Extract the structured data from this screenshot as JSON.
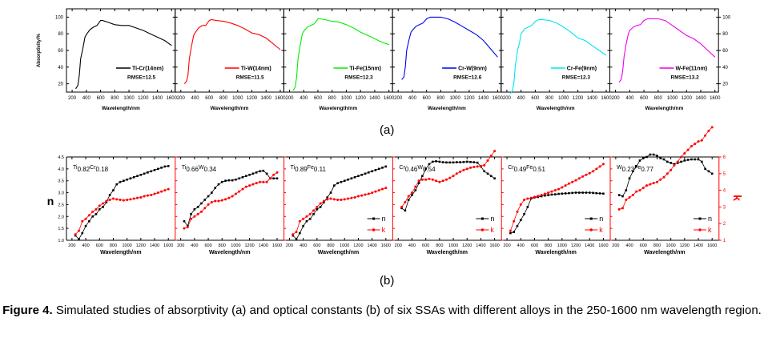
{
  "figure": {
    "label_a": "(a)",
    "label_b": "(b)",
    "caption_bold": "Figure 4.",
    "caption_text": " Simulated studies of absorptivity (a) and optical constants (b) of six SSAs with different alloys in the 250-1600 nm wavelength region."
  },
  "chart_data": [
    {
      "type": "line",
      "panel": "a",
      "ylabel": "Absorptivity/%",
      "xlabel": "Wavelength/nm",
      "xlim": [
        120,
        1650
      ],
      "ylim": [
        10,
        110
      ],
      "xticks": [
        200,
        400,
        600,
        800,
        1000,
        1200,
        1400,
        1600
      ],
      "yticks": [
        20,
        40,
        60,
        80,
        100
      ],
      "right_yticks": [
        20,
        40,
        60,
        80,
        100
      ],
      "legend_position": "bottom-right",
      "series": [
        {
          "name": "Ti-Cr(14nm)",
          "rmse": "RMSE=12.5",
          "color": "#000000",
          "x": [
            250,
            280,
            300,
            320,
            350,
            380,
            400,
            450,
            500,
            550,
            600,
            630,
            700,
            800,
            900,
            1000,
            1100,
            1200,
            1300,
            1400,
            1500,
            1600
          ],
          "y": [
            14,
            18,
            30,
            50,
            62,
            76,
            79,
            85,
            88,
            90,
            96,
            96,
            94,
            91,
            90,
            90,
            87,
            84,
            80,
            76,
            72,
            66
          ]
        },
        {
          "name": "Ti-W(14nm)",
          "rmse": "RMSE=11.5",
          "color": "#ff0000",
          "x": [
            250,
            280,
            300,
            320,
            350,
            380,
            400,
            450,
            500,
            550,
            600,
            630,
            700,
            800,
            900,
            1000,
            1100,
            1200,
            1300,
            1400,
            1500,
            1600
          ],
          "y": [
            20,
            23,
            30,
            50,
            65,
            78,
            81,
            87,
            90,
            90,
            96,
            97,
            96,
            95,
            93,
            90,
            86,
            81,
            79,
            75,
            68,
            61
          ]
        },
        {
          "name": "Ti-Fe(15nm)",
          "rmse": "RMSE=12.3",
          "color": "#00ee00",
          "x": [
            250,
            280,
            300,
            320,
            350,
            380,
            400,
            450,
            500,
            550,
            600,
            630,
            700,
            800,
            900,
            1000,
            1100,
            1200,
            1300,
            1400,
            1500,
            1600
          ],
          "y": [
            12,
            16,
            28,
            50,
            66,
            80,
            83,
            88,
            90,
            92,
            98,
            98,
            97,
            95,
            94,
            91,
            87,
            82,
            78,
            74,
            70,
            67
          ]
        },
        {
          "name": "Cr-W(9nm)",
          "rmse": "RMSE=12.6",
          "color": "#0000ee",
          "x": [
            250,
            280,
            300,
            320,
            350,
            380,
            400,
            450,
            500,
            550,
            600,
            650,
            700,
            800,
            900,
            1000,
            1100,
            1200,
            1300,
            1400,
            1500,
            1600
          ],
          "y": [
            25,
            28,
            40,
            60,
            72,
            82,
            84,
            89,
            91,
            93,
            98,
            100,
            100,
            100,
            98,
            94,
            89,
            84,
            79,
            72,
            62,
            52
          ]
        },
        {
          "name": "Cr-Fe(9nm)",
          "rmse": "RMSE=12.3",
          "color": "#00e5ee",
          "x": [
            250,
            280,
            300,
            320,
            350,
            380,
            400,
            450,
            500,
            550,
            600,
            650,
            700,
            800,
            900,
            1000,
            1100,
            1200,
            1300,
            1400,
            1500,
            1600
          ],
          "y": [
            8,
            12,
            22,
            42,
            60,
            70,
            80,
            86,
            88,
            90,
            95,
            97,
            97,
            96,
            93,
            88,
            82,
            75,
            72,
            66,
            60,
            54
          ]
        },
        {
          "name": "W-Fe(11nm)",
          "rmse": "RMSE=13.2",
          "color": "#ee00ee",
          "x": [
            250,
            280,
            300,
            320,
            350,
            380,
            400,
            450,
            500,
            550,
            600,
            650,
            700,
            800,
            900,
            1000,
            1100,
            1200,
            1300,
            1400,
            1500,
            1600
          ],
          "y": [
            22,
            25,
            35,
            52,
            68,
            80,
            84,
            88,
            90,
            91,
            96,
            98,
            98,
            98,
            96,
            90,
            84,
            78,
            74,
            68,
            60,
            52
          ]
        }
      ]
    },
    {
      "type": "scatter",
      "panel": "b",
      "ylabel_left": "n",
      "ylabel_right": "k",
      "xlabel": "Wavelength/nm",
      "xlim": [
        120,
        1700
      ],
      "ylim_n": [
        1.0,
        4.5
      ],
      "ylim_k": [
        1,
        6
      ],
      "xticks": [
        200,
        400,
        600,
        800,
        1000,
        1200,
        1400,
        1600
      ],
      "n_yticks": [
        "1.0",
        "1.5",
        "2.0",
        "2.5",
        "3.0",
        "3.5",
        "4.0",
        "4.5"
      ],
      "k_yticks": [
        "1",
        "2",
        "3",
        "4",
        "5",
        "6"
      ],
      "legend": [
        {
          "name": "n",
          "color": "#000000"
        },
        {
          "name": "k",
          "color": "#ff0000"
        }
      ],
      "x": [
        250,
        300,
        350,
        400,
        450,
        500,
        550,
        600,
        650,
        700,
        750,
        800,
        850,
        900,
        950,
        1000,
        1050,
        1100,
        1150,
        1200,
        1250,
        1300,
        1350,
        1400,
        1450,
        1500,
        1550,
        1600
      ],
      "panels": [
        {
          "title_main": "Ti",
          "sub1": "0.82",
          "el2": "Cr",
          "sub2": "0.18",
          "show_legend": false,
          "n": [
            1.2,
            1.05,
            1.3,
            1.6,
            1.8,
            2.0,
            2.1,
            2.3,
            2.4,
            2.6,
            2.9,
            3.1,
            3.35,
            3.45,
            3.5,
            3.55,
            3.6,
            3.65,
            3.7,
            3.75,
            3.8,
            3.85,
            3.9,
            3.95,
            4.0,
            4.05,
            4.1,
            4.12
          ],
          "k": [
            1.25,
            1.4,
            1.8,
            1.9,
            2.05,
            2.2,
            2.3,
            2.45,
            2.55,
            2.65,
            2.7,
            2.75,
            2.72,
            2.7,
            2.68,
            2.7,
            2.72,
            2.75,
            2.78,
            2.8,
            2.85,
            2.88,
            2.9,
            2.95,
            3.0,
            3.05,
            3.1,
            3.15
          ]
        },
        {
          "title_main": "Ti",
          "sub1": "0.66",
          "el2": "W",
          "sub2": "0.34",
          "show_legend": false,
          "n": [
            1.8,
            1.6,
            2.1,
            2.3,
            2.4,
            2.55,
            2.7,
            2.85,
            3.0,
            3.2,
            3.35,
            3.45,
            3.5,
            3.52,
            3.52,
            3.55,
            3.6,
            3.65,
            3.7,
            3.75,
            3.8,
            3.85,
            3.9,
            3.92,
            3.8,
            3.6,
            3.6,
            3.6
          ],
          "k": [
            1.5,
            1.55,
            1.9,
            2.0,
            2.1,
            2.2,
            2.35,
            2.5,
            2.6,
            2.65,
            2.65,
            2.68,
            2.72,
            2.78,
            2.85,
            2.95,
            3.05,
            3.15,
            3.25,
            3.3,
            3.35,
            3.4,
            3.45,
            3.45,
            3.45,
            3.6,
            3.75,
            3.85
          ]
        },
        {
          "title_main": "Ti",
          "sub1": "0.89",
          "el2": "Fe",
          "sub2": "0.11",
          "show_legend": true,
          "n": [
            1.2,
            1.05,
            1.3,
            1.6,
            1.8,
            1.9,
            2.1,
            2.3,
            2.4,
            2.6,
            2.8,
            3.0,
            3.3,
            3.4,
            3.45,
            3.5,
            3.55,
            3.6,
            3.65,
            3.7,
            3.75,
            3.8,
            3.85,
            3.9,
            3.95,
            4.0,
            4.05,
            4.1
          ],
          "k": [
            1.25,
            1.35,
            1.8,
            1.9,
            2.0,
            2.1,
            2.25,
            2.4,
            2.55,
            2.65,
            2.72,
            2.75,
            2.72,
            2.7,
            2.7,
            2.72,
            2.75,
            2.78,
            2.8,
            2.85,
            2.88,
            2.92,
            2.95,
            3.0,
            3.05,
            3.1,
            3.15,
            3.2
          ]
        },
        {
          "title_main": "Cr",
          "sub1": "0.46",
          "el2": "W",
          "sub2": "0.54",
          "show_legend": true,
          "n": [
            2.35,
            2.25,
            2.7,
            2.9,
            3.1,
            3.4,
            3.7,
            4.0,
            4.2,
            4.3,
            4.32,
            4.3,
            4.28,
            4.27,
            4.27,
            4.27,
            4.28,
            4.28,
            4.29,
            4.3,
            4.29,
            4.28,
            4.26,
            4.1,
            3.9,
            3.8,
            3.7,
            3.6
          ],
          "k": [
            2.4,
            2.6,
            2.85,
            3.0,
            3.25,
            3.5,
            3.55,
            3.55,
            3.58,
            3.55,
            3.5,
            3.45,
            3.5,
            3.55,
            3.62,
            3.7,
            3.8,
            3.88,
            3.95,
            4.0,
            4.05,
            4.08,
            4.1,
            4.12,
            4.15,
            4.35,
            4.55,
            4.75
          ]
        },
        {
          "title_main": "Cr",
          "sub1": "0.49",
          "el2": "Fe",
          "sub2": "0.51",
          "show_legend": true,
          "n": [
            1.3,
            1.35,
            1.6,
            1.85,
            2.1,
            2.4,
            2.75,
            2.8,
            2.82,
            2.85,
            2.88,
            2.9,
            2.92,
            2.93,
            2.95,
            2.96,
            2.97,
            2.98,
            2.99,
            3.0,
            3.0,
            3.0,
            3.0,
            3.0,
            2.99,
            2.98,
            2.97,
            2.96
          ],
          "k": [
            1.4,
            1.8,
            2.2,
            2.5,
            2.7,
            2.75,
            2.78,
            2.82,
            2.86,
            2.9,
            2.95,
            3.0,
            3.05,
            3.1,
            3.15,
            3.22,
            3.3,
            3.38,
            3.45,
            3.52,
            3.6,
            3.68,
            3.75,
            3.82,
            3.9,
            4.0,
            4.1,
            4.2
          ]
        },
        {
          "title_main": "W",
          "sub1": "0.23",
          "el2": "Fe",
          "sub2": "0.77",
          "show_legend": true,
          "n": [
            2.9,
            2.85,
            3.1,
            3.6,
            3.9,
            4.1,
            4.35,
            4.45,
            4.5,
            4.6,
            4.6,
            4.55,
            4.45,
            4.4,
            4.3,
            4.25,
            4.2,
            4.25,
            4.3,
            4.35,
            4.38,
            4.4,
            4.4,
            4.4,
            4.3,
            4.0,
            3.9,
            3.8
          ],
          "k": [
            2.3,
            2.35,
            2.7,
            2.8,
            2.9,
            3.05,
            3.1,
            3.2,
            3.3,
            3.35,
            3.4,
            3.45,
            3.55,
            3.65,
            3.8,
            3.95,
            4.15,
            4.3,
            4.5,
            4.65,
            4.8,
            4.95,
            5.05,
            5.15,
            5.2,
            5.4,
            5.6,
            5.75
          ]
        }
      ]
    }
  ]
}
